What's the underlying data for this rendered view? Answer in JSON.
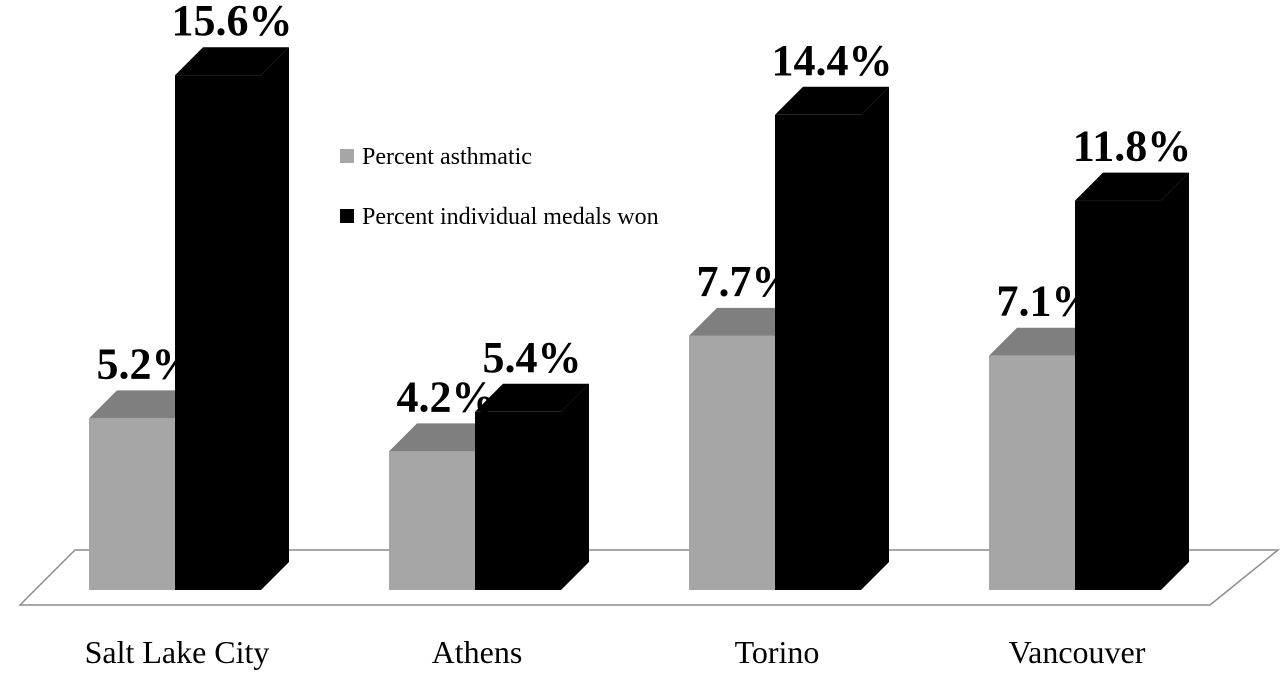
{
  "chart_data": {
    "type": "bar",
    "categories": [
      "Salt Lake City",
      "Athens",
      "Torino",
      "Vancouver"
    ],
    "series": [
      {
        "name": "Percent asthmatic",
        "values": [
          5.2,
          4.2,
          7.7,
          7.1
        ],
        "labels": [
          "5.2%",
          "4.2%",
          "7.7%",
          "7.1%"
        ],
        "color": "#a6a6a6",
        "top_color": "#7f7f7f"
      },
      {
        "name": "Percent individual medals won",
        "values": [
          15.6,
          5.4,
          14.4,
          11.8
        ],
        "labels": [
          "15.6%",
          "5.4%",
          "14.4%",
          "11.8%"
        ],
        "color": "#000000",
        "top_color": "#000000"
      }
    ],
    "ylim": [
      0,
      16
    ],
    "grid": false,
    "legend": "top-center",
    "style": "3d-column"
  }
}
